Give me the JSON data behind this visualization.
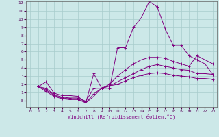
{
  "xlabel": "Windchill (Refroidissement éolien,°C)",
  "bg_color": "#cce8e8",
  "line_color": "#800080",
  "grid_color": "#a8cccc",
  "xlim": [
    -0.5,
    23.5
  ],
  "ylim": [
    -0.8,
    12.2
  ],
  "xticks": [
    0,
    1,
    2,
    3,
    4,
    5,
    6,
    7,
    8,
    9,
    10,
    11,
    12,
    13,
    14,
    15,
    16,
    17,
    18,
    19,
    20,
    21,
    22,
    23
  ],
  "yticks": [
    0,
    1,
    2,
    3,
    4,
    5,
    6,
    7,
    8,
    9,
    10,
    11,
    12
  ],
  "ytick_labels": [
    "-0",
    "1",
    "2",
    "3",
    "4",
    "5",
    "6",
    "7",
    "8",
    "9",
    "10",
    "11",
    "12"
  ],
  "lines": [
    {
      "x": [
        1,
        2,
        3,
        4,
        5,
        6,
        7,
        8,
        9,
        10,
        11,
        12,
        13,
        14,
        15,
        16,
        17,
        18,
        19,
        20,
        21,
        22,
        23
      ],
      "y": [
        1.7,
        2.3,
        0.9,
        0.6,
        0.6,
        0.5,
        -0.3,
        3.3,
        1.5,
        1.5,
        6.5,
        6.5,
        9.0,
        10.2,
        12.2,
        11.5,
        8.8,
        6.8,
        6.8,
        5.5,
        5.0,
        4.5,
        3.2
      ]
    },
    {
      "x": [
        1,
        2,
        3,
        4,
        5,
        6,
        7,
        8,
        9,
        10,
        11,
        12,
        13,
        14,
        15,
        16,
        17,
        18,
        19,
        20,
        21,
        22,
        23
      ],
      "y": [
        1.7,
        1.5,
        0.7,
        0.4,
        0.3,
        0.3,
        -0.1,
        1.5,
        1.5,
        2.0,
        3.0,
        3.8,
        4.5,
        5.0,
        5.3,
        5.3,
        5.2,
        4.8,
        4.5,
        4.2,
        5.5,
        5.0,
        4.5
      ]
    },
    {
      "x": [
        1,
        2,
        3,
        4,
        5,
        6,
        7,
        8,
        9,
        10,
        11,
        12,
        13,
        14,
        15,
        16,
        17,
        18,
        19,
        20,
        21,
        22,
        23
      ],
      "y": [
        1.7,
        1.3,
        0.6,
        0.3,
        0.2,
        0.2,
        -0.3,
        0.8,
        1.5,
        1.8,
        2.3,
        2.8,
        3.3,
        3.8,
        4.2,
        4.4,
        4.2,
        4.0,
        3.8,
        3.7,
        3.3,
        3.3,
        3.2
      ]
    },
    {
      "x": [
        1,
        2,
        3,
        4,
        5,
        6,
        7,
        8,
        9,
        10,
        11,
        12,
        13,
        14,
        15,
        16,
        17,
        18,
        19,
        20,
        21,
        22,
        23
      ],
      "y": [
        1.7,
        1.1,
        0.5,
        0.2,
        0.1,
        0.1,
        -0.3,
        0.5,
        1.5,
        1.8,
        2.0,
        2.4,
        2.8,
        3.1,
        3.3,
        3.4,
        3.3,
        3.1,
        3.0,
        2.9,
        2.7,
        2.7,
        2.6
      ]
    }
  ]
}
